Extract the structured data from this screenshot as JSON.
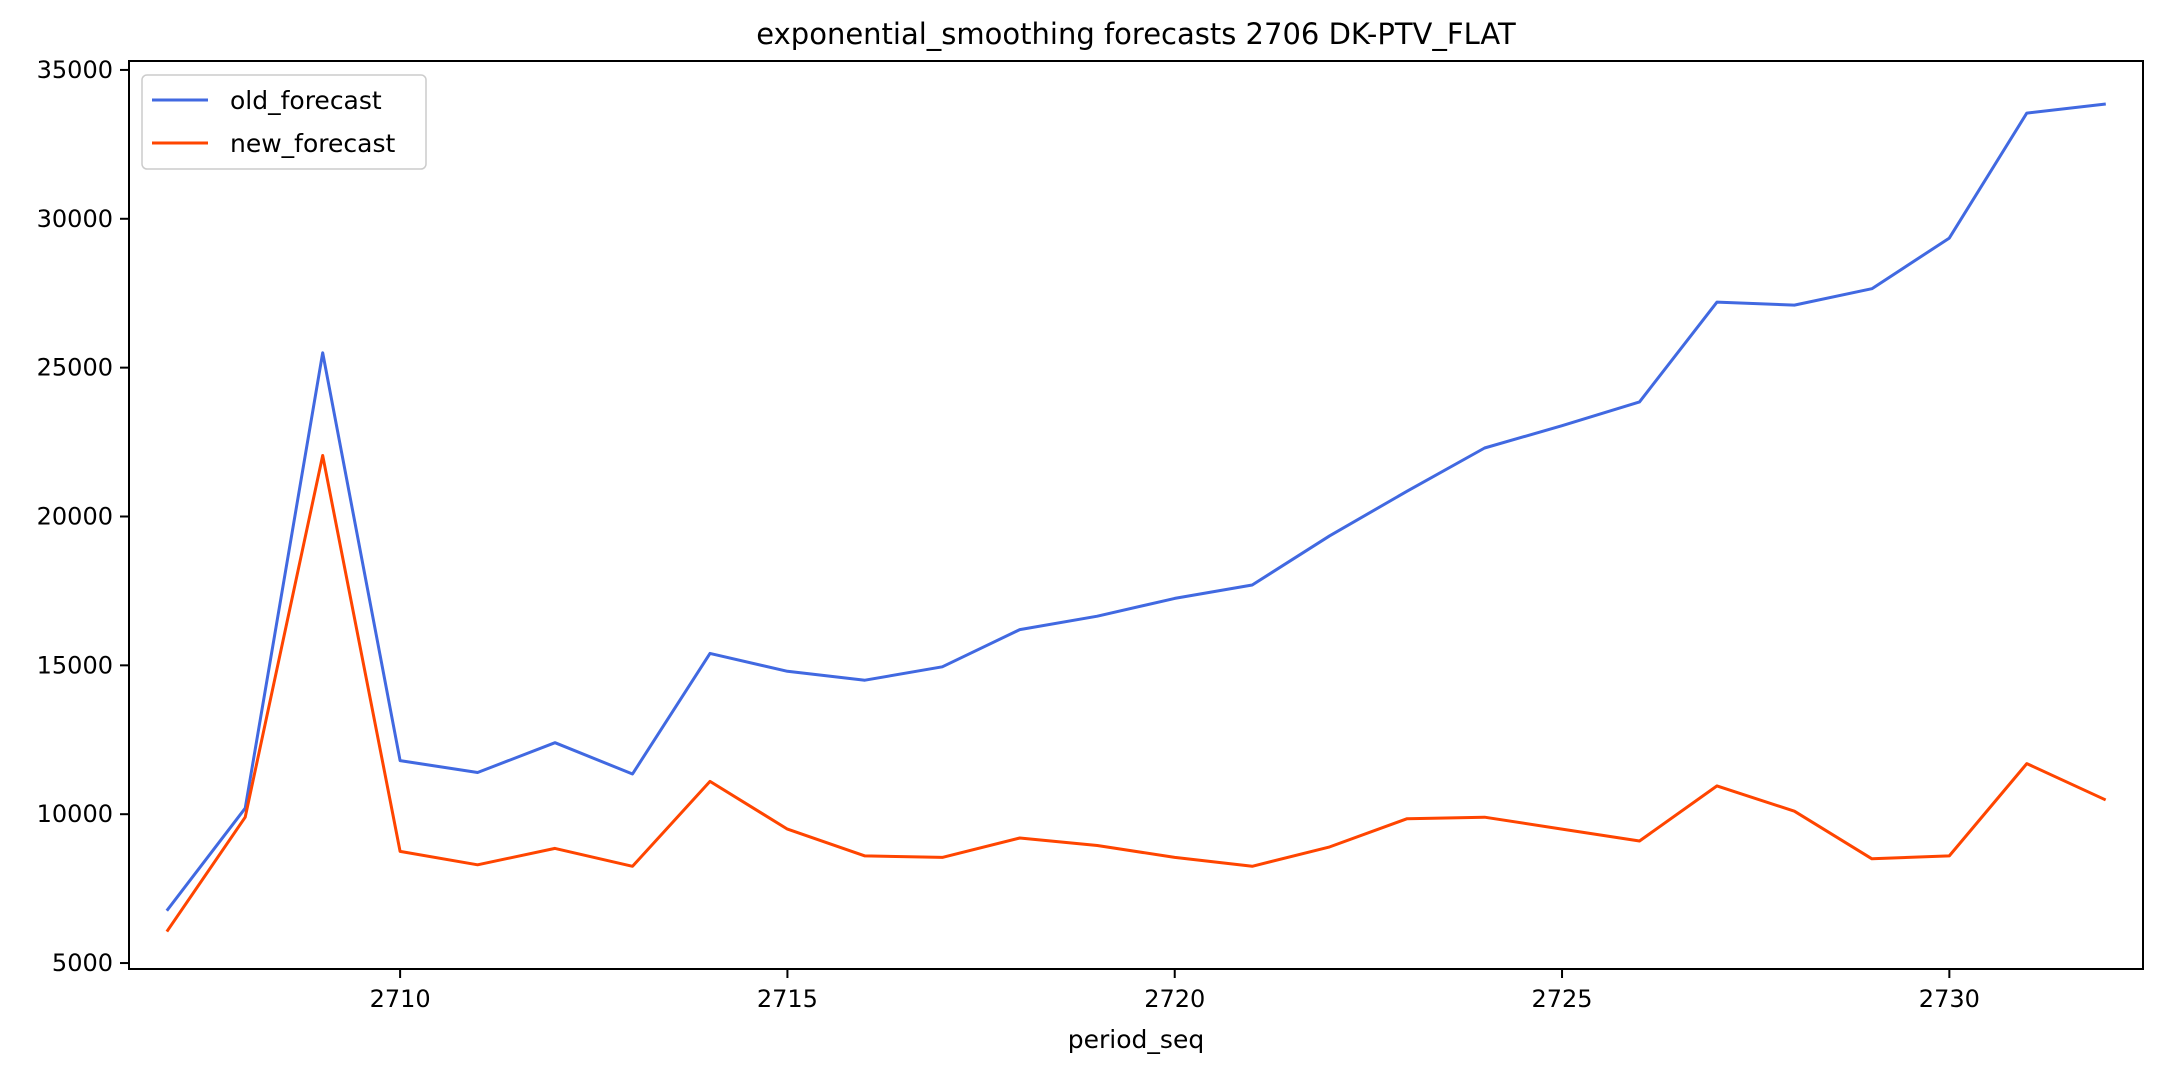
{
  "chart_data": {
    "type": "line",
    "title": "exponential_smoothing forecasts 2706 DK-PTV_FLAT",
    "xlabel": "period_seq",
    "ylabel": "",
    "xlim": [
      2706.5,
      2732.5
    ],
    "ylim": [
      4800,
      35300
    ],
    "xticks": [
      2710,
      2715,
      2720,
      2725,
      2730
    ],
    "yticks": [
      5000,
      10000,
      15000,
      20000,
      25000,
      30000,
      35000
    ],
    "grid": false,
    "legend_position": "upper-left",
    "x": [
      2707,
      2708,
      2709,
      2710,
      2711,
      2712,
      2713,
      2714,
      2715,
      2716,
      2717,
      2718,
      2719,
      2720,
      2721,
      2722,
      2723,
      2724,
      2725,
      2726,
      2727,
      2728,
      2729,
      2730,
      2731,
      2732
    ],
    "series": [
      {
        "name": "old_forecast",
        "color": "#4169e1",
        "values": [
          6800,
          10200,
          25500,
          11800,
          11400,
          12400,
          11350,
          15400,
          14800,
          14500,
          14950,
          16200,
          16650,
          17250,
          17700,
          19350,
          20850,
          22300,
          23050,
          23850,
          27200,
          27100,
          27650,
          29350,
          33550,
          33850
        ]
      },
      {
        "name": "new_forecast",
        "color": "#ff4500",
        "values": [
          6100,
          9900,
          22050,
          8750,
          8300,
          8850,
          8250,
          11100,
          9500,
          8600,
          8550,
          9200,
          8950,
          8550,
          8250,
          8900,
          9850,
          9900,
          9500,
          9100,
          10950,
          10100,
          8500,
          8600,
          11700,
          10500
        ]
      }
    ]
  }
}
